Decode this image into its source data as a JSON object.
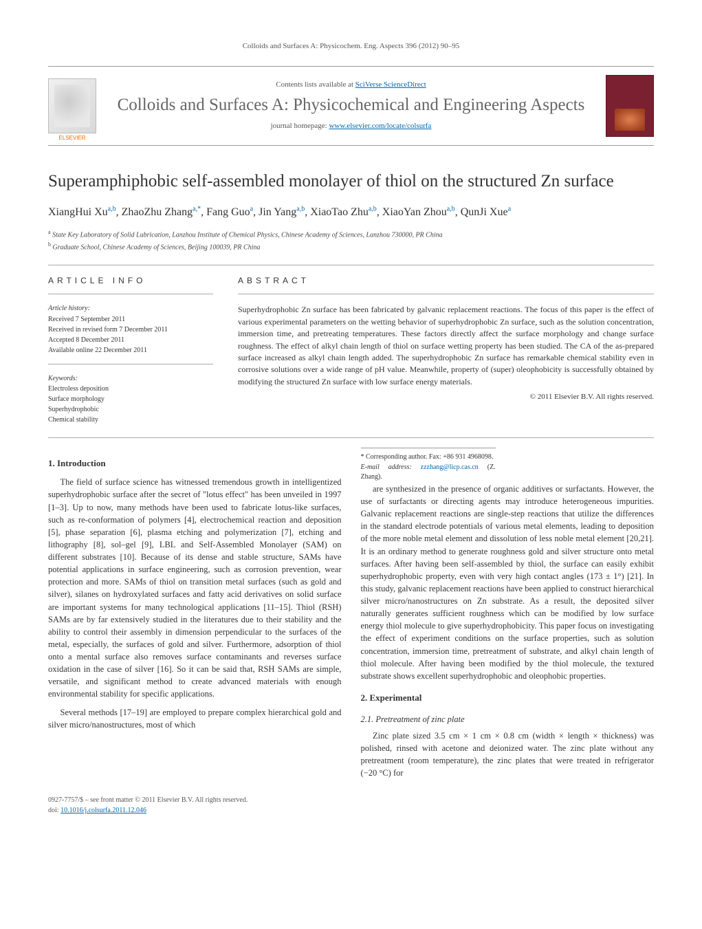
{
  "runningHead": "Colloids and Surfaces A: Physicochem. Eng. Aspects 396 (2012) 90–95",
  "masthead": {
    "publisherLabel": "ELSEVIER",
    "contentsLine": "Contents lists available at ",
    "contentsLinkText": "SciVerse ScienceDirect",
    "journalName": "Colloids and Surfaces A: Physicochemical and Engineering Aspects",
    "homepagePrefix": "journal homepage: ",
    "homepageUrl": "www.elsevier.com/locate/colsurfa"
  },
  "article": {
    "title": "Superamphiphobic self-assembled monolayer of thiol on the structured Zn surface",
    "authorsHtmlParts": [
      {
        "name": "XiangHui Xu",
        "sup": "a,b"
      },
      {
        "name": "ZhaoZhu Zhang",
        "sup": "a,*"
      },
      {
        "name": "Fang Guo",
        "sup": "a"
      },
      {
        "name": "Jin Yang",
        "sup": "a,b"
      },
      {
        "name": "XiaoTao Zhu",
        "sup": "a,b"
      },
      {
        "name": "XiaoYan Zhou",
        "sup": "a,b"
      },
      {
        "name": "QunJi Xue",
        "sup": "a"
      }
    ],
    "affiliations": [
      {
        "key": "a",
        "text": "State Key Laboratory of Solid Lubrication, Lanzhou Institute of Chemical Physics, Chinese Academy of Sciences, Lanzhou 730000, PR China"
      },
      {
        "key": "b",
        "text": "Graduate School, Chinese Academy of Sciences, Beijing 100039, PR China"
      }
    ]
  },
  "info": {
    "headingLeft": "article info",
    "headingRight": "abstract",
    "historyHead": "Article history:",
    "history": [
      "Received 7 September 2011",
      "Received in revised form 7 December 2011",
      "Accepted 8 December 2011",
      "Available online 22 December 2011"
    ],
    "keywordsHead": "Keywords:",
    "keywords": [
      "Electroless deposition",
      "Surface morphology",
      "Superhydrophobic",
      "Chemical stability"
    ],
    "abstract": "Superhydrophobic Zn surface has been fabricated by galvanic replacement reactions. The focus of this paper is the effect of various experimental parameters on the wetting behavior of superhydrophobic Zn surface, such as the solution concentration, immersion time, and pretreating temperatures. These factors directly affect the surface morphology and change surface roughness. The effect of alkyl chain length of thiol on surface wetting property has been studied. The CA of the as-prepared surface increased as alkyl chain length added. The superhydrophobic Zn surface has remarkable chemical stability even in corrosive solutions over a wide range of pH value. Meanwhile, property of (super) oleophobicity is successfully obtained by modifying the structured Zn surface with low surface energy materials.",
    "copyright": "© 2011 Elsevier B.V. All rights reserved."
  },
  "sections": {
    "s1title": "1. Introduction",
    "s1p1": "The field of surface science has witnessed tremendous growth in intelligentized superhydrophobic surface after the secret of \"lotus effect\" has been unveiled in 1997 [1–3]. Up to now, many methods have been used to fabricate lotus-like surfaces, such as re-conformation of polymers [4], electrochemical reaction and deposition [5], phase separation [6], plasma etching and polymerization [7], etching and lithography [8], sol–gel [9], LBL and Self-Assembled Monolayer (SAM) on different substrates [10]. Because of its dense and stable structure, SAMs have potential applications in surface engineering, such as corrosion prevention, wear protection and more. SAMs of thiol on transition metal surfaces (such as gold and silver), silanes on hydroxylated surfaces and fatty acid derivatives on solid surface are important systems for many technological applications [11–15]. Thiol (RSH) SAMs are by far extensively studied in the literatures due to their stability and the ability to control their assembly in dimension perpendicular to the surfaces of the metal, especially, the surfaces of gold and silver. Furthermore, adsorption of thiol onto a mental surface also removes surface contaminants and reverses surface oxidation in the case of silver [16]. So it can be said that, RSH SAMs are simple, versatile, and significant method to create advanced materials with enough environmental stability for specific applications.",
    "s1p2": "Several methods [17–19] are employed to prepare complex hierarchical gold and silver micro/nanostructures, most of which",
    "s1p3": "are synthesized in the presence of organic additives or surfactants. However, the use of surfactants or directing agents may introduce heterogeneous impurities. Galvanic replacement reactions are single-step reactions that utilize the differences in the standard electrode potentials of various metal elements, leading to deposition of the more noble metal element and dissolution of less noble metal element [20,21]. It is an ordinary method to generate roughness gold and silver structure onto metal surfaces. After having been self-assembled by thiol, the surface can easily exhibit superhydrophobic property, even with very high contact angles (173 ± 1°) [21]. In this study, galvanic replacement reactions have been applied to construct hierarchical silver micro/nanostructures on Zn substrate. As a result, the deposited silver naturally generates sufficient roughness which can be modified by low surface energy thiol molecule to give superhydrophobicity. This paper focus on investigating the effect of experiment conditions on the surface properties, such as solution concentration, immersion time, pretreatment of substrate, and alkyl chain length of thiol molecule. After having been modified by the thiol molecule, the textured substrate shows excellent superhydrophobic and oleophobic properties.",
    "s2title": "2. Experimental",
    "s21title": "2.1. Pretreatment of zinc plate",
    "s21p1": "Zinc plate sized 3.5 cm × 1 cm × 0.8 cm (width × length × thickness) was polished, rinsed with acetone and deionized water. The zinc plate without any pretreatment (room temperature), the zinc plates that were treated in refrigerator (−20 °C) for"
  },
  "footnote": {
    "corrLabel": "* Corresponding author. Fax: +86 931 4968098.",
    "emailLabel": "E-mail address: ",
    "email": "zzzhang@licp.cas.cn",
    "emailSuffix": " (Z. Zhang)."
  },
  "bottom": {
    "line1": "0927-7757/$ – see front matter © 2011 Elsevier B.V. All rights reserved.",
    "doiLabel": "doi:",
    "doi": "10.1016/j.colsurfa.2011.12.046"
  },
  "colors": {
    "link": "#0066aa",
    "textMain": "#333333",
    "rule": "#aaaaaa",
    "coverBg": "#7a2030"
  }
}
